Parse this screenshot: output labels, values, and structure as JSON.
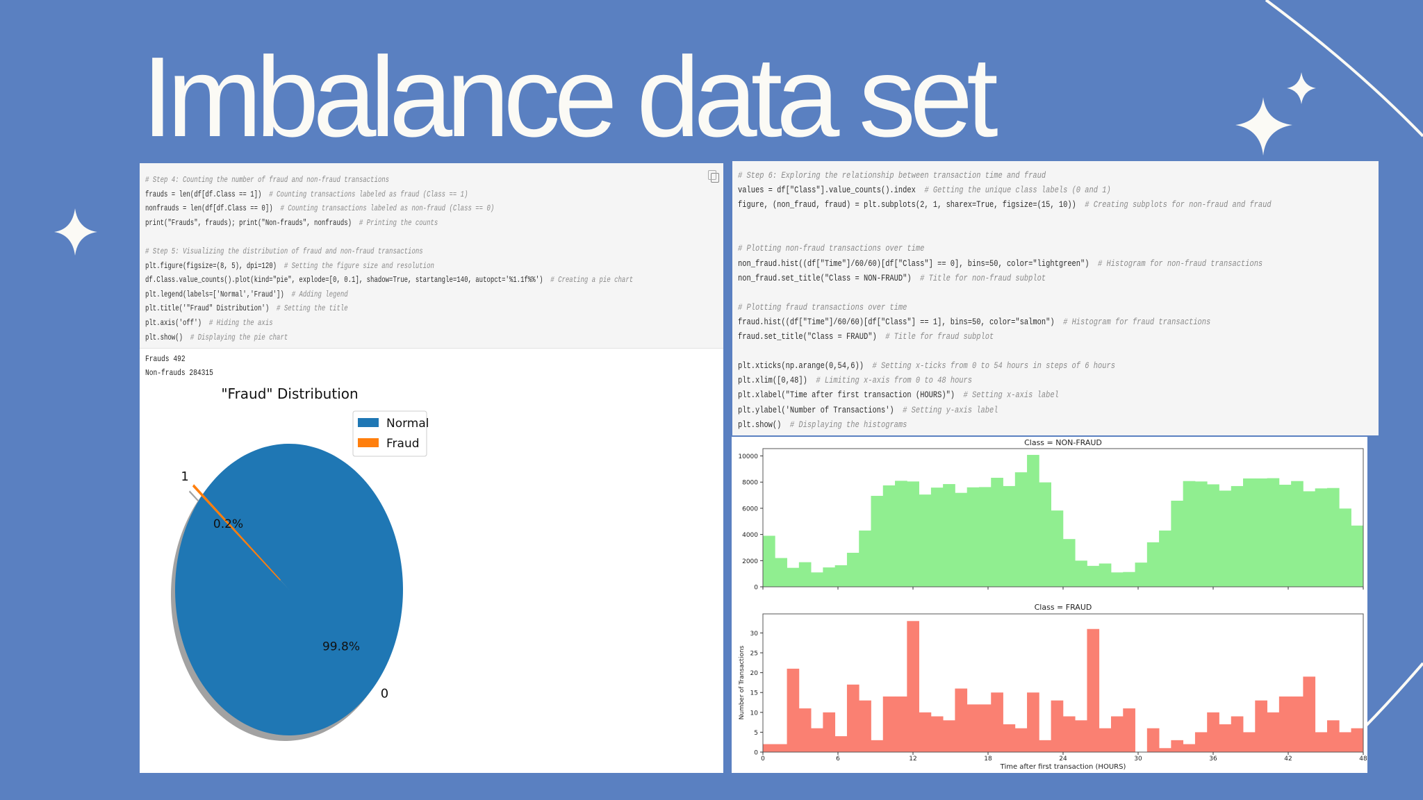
{
  "slide": {
    "title": "Imbalance data set",
    "background": "#5a80c1"
  },
  "left_cell": {
    "code_lines": [
      {
        "code": "",
        "comment": "# Step 4: Counting the number of fraud and non-fraud transactions"
      },
      {
        "code": "frauds = len(df[df.Class == 1])  ",
        "comment": "# Counting transactions labeled as fraud (Class == 1)"
      },
      {
        "code": "nonfrauds = len(df[df.Class == 0])  ",
        "comment": "# Counting transactions labeled as non-fraud (Class == 0)"
      },
      {
        "code": "print(\"Frauds\", frauds); print(\"Non-frauds\", nonfrauds)  ",
        "comment": "# Printing the counts"
      },
      {
        "code": " ",
        "comment": ""
      },
      {
        "code": "",
        "comment": "# Step 5: Visualizing the distribution of fraud and non-fraud transactions"
      },
      {
        "code": "plt.figure(figsize=(8, 5), dpi=120)  ",
        "comment": "# Setting the figure size and resolution"
      },
      {
        "code": "df.Class.value_counts().plot(kind=\"pie\", explode=[0, 0.1], shadow=True, startangle=140, autopct='%1.1f%%')  ",
        "comment": "# Creating a pie chart"
      },
      {
        "code": "plt.legend(labels=['Normal','Fraud'])  ",
        "comment": "# Adding legend"
      },
      {
        "code": "plt.title('\"Fraud\" Distribution')  ",
        "comment": "# Setting the title"
      },
      {
        "code": "plt.axis('off')  ",
        "comment": "# Hiding the axis"
      },
      {
        "code": "plt.show()  ",
        "comment": "# Displaying the pie chart"
      }
    ],
    "output_lines": [
      "Frauds 492",
      "Non-frauds 284315"
    ]
  },
  "right_cell": {
    "code_lines": [
      {
        "code": "",
        "comment": "# Step 6: Exploring the relationship between transaction time and fraud"
      },
      {
        "code": "values = df[\"Class\"].value_counts().index  ",
        "comment": "# Getting the unique class labels (0 and 1)"
      },
      {
        "code": "figure, (non_fraud, fraud) = plt.subplots(2, 1, sharex=True, figsize=(15, 10))  ",
        "comment": "# Creating subplots for non-fraud and fraud"
      },
      {
        "code": " ",
        "comment": ""
      },
      {
        "code": " ",
        "comment": ""
      },
      {
        "code": "",
        "comment": "# Plotting non-fraud transactions over time"
      },
      {
        "code": "non_fraud.hist((df[\"Time\"]/60/60)[df[\"Class\"] == 0], bins=50, color=\"lightgreen\")  ",
        "comment": "# Histogram for non-fraud transactions"
      },
      {
        "code": "non_fraud.set_title(\"Class = NON-FRAUD\")  ",
        "comment": "# Title for non-fraud subplot"
      },
      {
        "code": " ",
        "comment": ""
      },
      {
        "code": "",
        "comment": "# Plotting fraud transactions over time"
      },
      {
        "code": "fraud.hist((df[\"Time\"]/60/60)[df[\"Class\"] == 1], bins=50, color=\"salmon\")  ",
        "comment": "# Histogram for fraud transactions"
      },
      {
        "code": "fraud.set_title(\"Class = FRAUD\")  ",
        "comment": "# Title for fraud subplot"
      },
      {
        "code": " ",
        "comment": ""
      },
      {
        "code": "plt.xticks(np.arange(0,54,6))  ",
        "comment": "# Setting x-ticks from 0 to 54 hours in steps of 6 hours"
      },
      {
        "code": "plt.xlim([0,48])  ",
        "comment": "# Limiting x-axis from 0 to 48 hours"
      },
      {
        "code": "plt.xlabel(\"Time after first transaction (HOURS)\")  ",
        "comment": "# Setting x-axis label"
      },
      {
        "code": "plt.ylabel('Number of Transactions')  ",
        "comment": "# Setting y-axis label"
      },
      {
        "code": "plt.show()  ",
        "comment": "# Displaying the histograms"
      }
    ]
  },
  "chart_data": [
    {
      "type": "pie",
      "title": "\"Fraud\" Distribution",
      "categories": [
        "0",
        "1"
      ],
      "values": [
        99.8,
        0.2
      ],
      "pct_labels": [
        "99.8%",
        "0.2%"
      ],
      "legend": [
        "Normal",
        "Fraud"
      ],
      "legend_position": "top-right",
      "colors": [
        "#1f77b4",
        "#ff7f0e"
      ],
      "startangle": 140,
      "explode": [
        0,
        0.1
      ]
    },
    {
      "type": "bar",
      "title": "Class = NON-FRAUD",
      "color": "#90ee90",
      "bins": 50,
      "bin_range": [
        0,
        48
      ],
      "values": [
        3900,
        2200,
        1450,
        1880,
        1100,
        1480,
        1650,
        2600,
        4300,
        6950,
        7750,
        8100,
        8050,
        7050,
        7580,
        7850,
        7180,
        7600,
        7620,
        8330,
        7700,
        8750,
        10080,
        7980,
        5830,
        3650,
        2000,
        1600,
        1780,
        1100,
        1130,
        1850,
        3400,
        4300,
        6580,
        8080,
        8050,
        7830,
        7350,
        7700,
        8280,
        8280,
        8300,
        7800,
        8080,
        7300,
        7520,
        7550,
        5980,
        4680
      ],
      "xlim": [
        0,
        48
      ],
      "ylim": [
        0,
        10560
      ],
      "yticks": [
        "0",
        "2000",
        "4000",
        "6000",
        "8000",
        "10000"
      ]
    },
    {
      "type": "bar",
      "title": "Class = FRAUD",
      "color": "#fa8072",
      "bins": 50,
      "bin_range": [
        0,
        48
      ],
      "values": [
        2,
        2,
        21,
        11,
        6,
        10,
        4,
        17,
        13,
        3,
        14,
        14,
        33,
        10,
        9,
        8,
        16,
        12,
        12,
        15,
        7,
        6,
        15,
        3,
        13,
        9,
        8,
        31,
        6,
        9,
        11,
        0,
        6,
        1,
        3,
        2,
        5,
        10,
        7,
        9,
        5,
        13,
        10,
        14,
        14,
        19,
        5,
        8,
        5,
        6
      ],
      "xlim": [
        0,
        48
      ],
      "ylim": [
        0,
        34.8
      ],
      "yticks": [
        "0",
        "5",
        "10",
        "15",
        "20",
        "25",
        "30"
      ],
      "xticks": [
        "0",
        "6",
        "12",
        "18",
        "24",
        "30",
        "36",
        "42",
        "48"
      ],
      "xlabel": "Time after first transaction (HOURS)",
      "ylabel": "Number of Transactions"
    }
  ]
}
